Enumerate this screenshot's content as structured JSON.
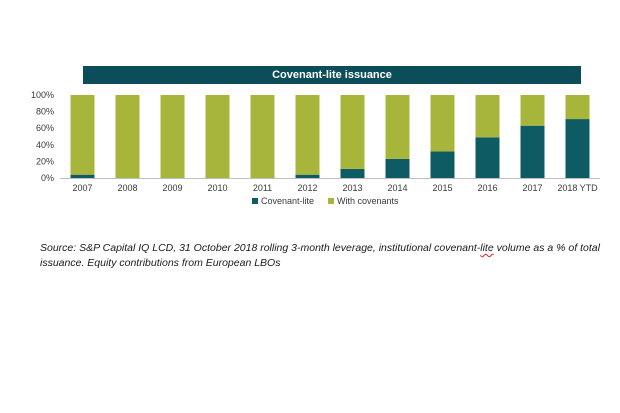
{
  "chart_data": {
    "type": "bar",
    "stacked": true,
    "title": "Covenant-lite issuance",
    "categories": [
      "2007",
      "2008",
      "2009",
      "2010",
      "2011",
      "2012",
      "2013",
      "2014",
      "2015",
      "2016",
      "2017",
      "2018 YTD"
    ],
    "series": [
      {
        "name": "Covenant-lite",
        "color": "#0e5b63",
        "values": [
          4,
          0,
          0,
          0,
          0,
          4,
          11,
          23,
          32,
          49,
          63,
          71
        ]
      },
      {
        "name": "With covenants",
        "color": "#a7b63b",
        "values": [
          96,
          100,
          100,
          100,
          100,
          96,
          89,
          77,
          68,
          51,
          37,
          29
        ]
      }
    ],
    "ylim": [
      0,
      100
    ],
    "yticks": [
      "0%",
      "20%",
      "40%",
      "60%",
      "80%",
      "100%"
    ],
    "legend_position": "bottom-center",
    "grid": false
  },
  "source": {
    "before": "Source: S&P Capital IQ LCD, 31 October 2018 rolling 3-month leverage, institutional covenant-",
    "lite": "lite",
    "after": " volume as a % of total issuance. Equity contributions from European LBOs"
  }
}
